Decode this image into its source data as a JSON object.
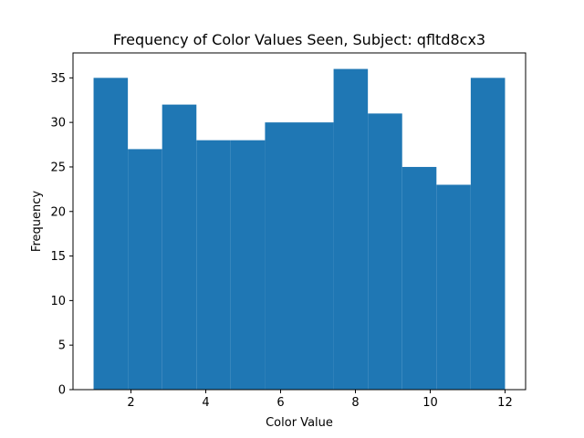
{
  "chart_data": {
    "type": "bar",
    "title": "Frequency of Color Values Seen, Subject: qfltd8cx3",
    "xlabel": "Color Value",
    "ylabel": "Frequency",
    "bin_edges": [
      1.0,
      1.9167,
      2.8333,
      3.75,
      4.6667,
      5.5833,
      6.5,
      7.4167,
      8.3333,
      9.25,
      10.1667,
      11.0833,
      12.0
    ],
    "values": [
      35,
      27,
      32,
      28,
      28,
      30,
      30,
      36,
      31,
      25,
      23,
      35
    ],
    "xlim": [
      0.45,
      12.55
    ],
    "ylim": [
      0,
      37.8
    ],
    "xticks": [
      2,
      4,
      6,
      8,
      10,
      12
    ],
    "yticks": [
      0,
      5,
      10,
      15,
      20,
      25,
      30,
      35
    ],
    "bar_color": "#1f77b4",
    "grid": false,
    "legend": "none"
  }
}
